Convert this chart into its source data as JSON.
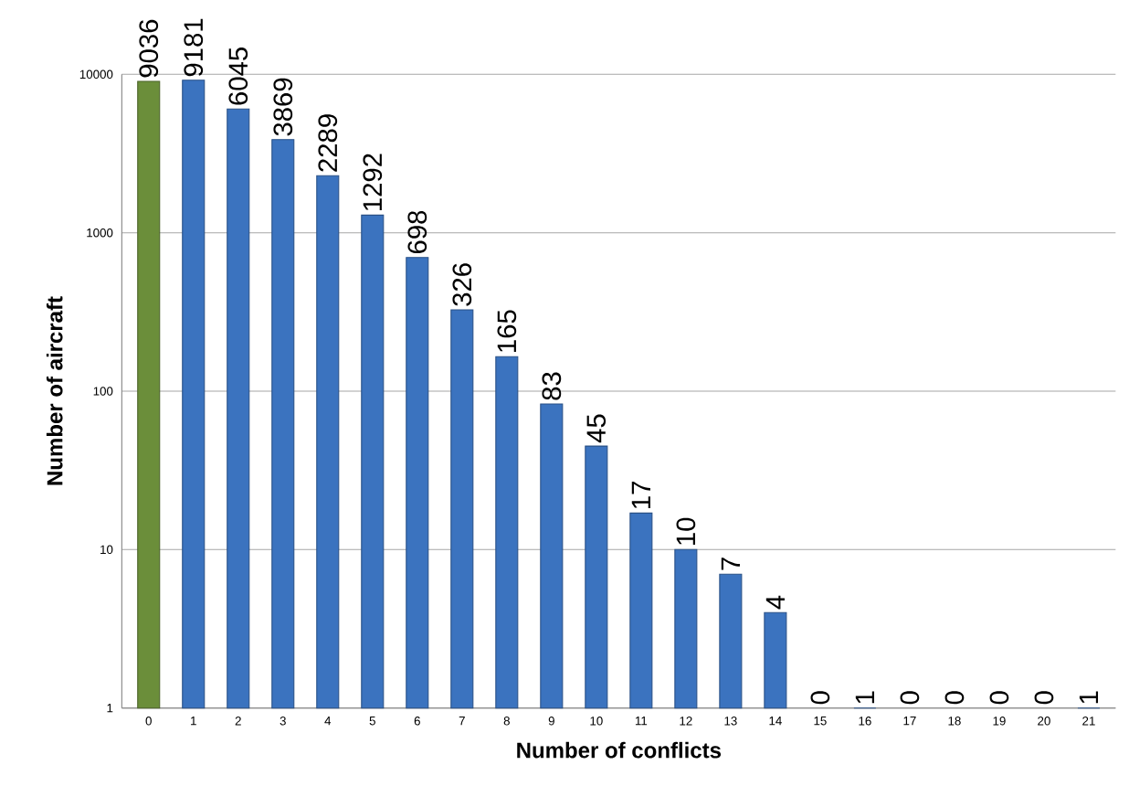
{
  "chart_data": {
    "type": "bar",
    "xlabel": "Number of conflicts",
    "ylabel": "Number of aircraft",
    "categories": [
      "0",
      "1",
      "2",
      "3",
      "4",
      "5",
      "6",
      "7",
      "8",
      "9",
      "10",
      "11",
      "12",
      "13",
      "14",
      "15",
      "16",
      "17",
      "18",
      "19",
      "20",
      "21"
    ],
    "values": [
      9036,
      9181,
      6045,
      3869,
      2289,
      1292,
      698,
      326,
      165,
      83,
      45,
      17,
      10,
      7,
      4,
      null,
      1,
      null,
      null,
      null,
      null,
      1
    ],
    "value_labels": [
      "9036",
      "9181",
      "6045",
      "3869",
      "2289",
      "1292",
      "698",
      "326",
      "165",
      "83",
      "45",
      "17",
      "10",
      "7",
      "4",
      "0",
      "1",
      "0",
      "0",
      "0",
      "0",
      "1"
    ],
    "colors": [
      "#6b8e3a",
      "#3b73bf",
      "#3b73bf",
      "#3b73bf",
      "#3b73bf",
      "#3b73bf",
      "#3b73bf",
      "#3b73bf",
      "#3b73bf",
      "#3b73bf",
      "#3b73bf",
      "#3b73bf",
      "#3b73bf",
      "#3b73bf",
      "#3b73bf",
      "#3b73bf",
      "#3b73bf",
      "#3b73bf",
      "#3b73bf",
      "#3b73bf",
      "#3b73bf",
      "#3b73bf"
    ],
    "log": "y",
    "ylim": [
      1,
      10000
    ],
    "yticks": [
      1,
      10,
      100,
      1000,
      10000
    ],
    "grid": "y"
  }
}
